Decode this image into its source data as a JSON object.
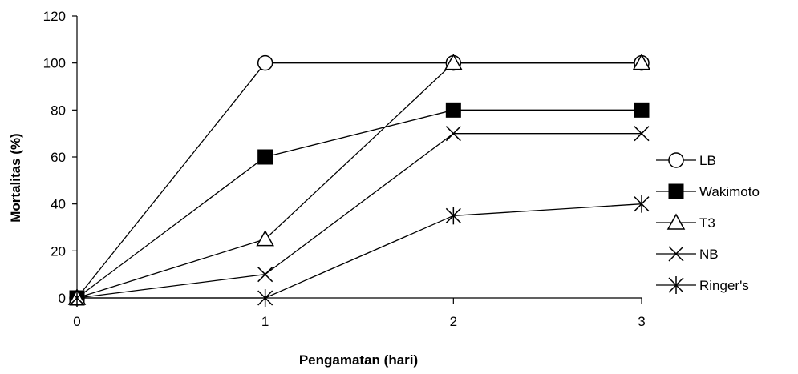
{
  "chart_data": {
    "type": "line",
    "title": "",
    "xlabel": "Pengamatan (hari)",
    "ylabel": "Mortalitas (%)",
    "x": [
      0,
      1,
      2,
      3
    ],
    "xticks": [
      "0",
      "1",
      "2",
      "3"
    ],
    "yticks": [
      "0",
      "20",
      "40",
      "60",
      "80",
      "100",
      "120"
    ],
    "ylim": [
      0,
      120
    ],
    "xlim": [
      0,
      3
    ],
    "grid": false,
    "legend_position": "right",
    "series": [
      {
        "name": "LB",
        "marker": "circle-open",
        "values": [
          0,
          100,
          100,
          100
        ]
      },
      {
        "name": "Wakimoto",
        "marker": "square-filled",
        "values": [
          0,
          60,
          80,
          80
        ]
      },
      {
        "name": "T3",
        "marker": "triangle-open",
        "values": [
          0,
          25,
          100,
          100
        ]
      },
      {
        "name": "NB",
        "marker": "x",
        "values": [
          0,
          10,
          70,
          70
        ]
      },
      {
        "name": "Ringer's",
        "marker": "asterisk",
        "values": [
          0,
          0,
          35,
          40
        ]
      }
    ]
  }
}
